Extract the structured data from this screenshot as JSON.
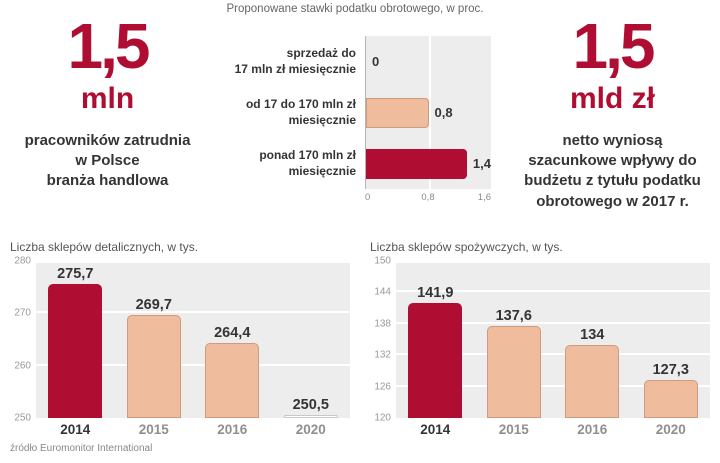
{
  "palette": {
    "crimson": "#b00d33",
    "salmon": "#efbc9e",
    "salmon_border": "#d09a7e",
    "white_bar": "#ffffff",
    "white_bar_border": "#c8c8c8",
    "plot_bg": "#ededed",
    "dark_text": "#343434"
  },
  "stats": {
    "left": {
      "value": "1,5",
      "unit": "mln",
      "desc": "pracowników zatrudnia\nw Polsce\nbranża handlowa"
    },
    "right": {
      "value": "1,5",
      "unit": "mld zł",
      "desc": "netto wyniosą\nszacunkowe wpływy do\nbudżetu z tytułu podatku\nobrotowego w 2017 r."
    }
  },
  "source": "źródło Euromonitor International",
  "chart_data": [
    {
      "type": "bar",
      "orientation": "horizontal",
      "title": "Proponowane stawki podatku obrotowego, w proc.",
      "categories": [
        "sprzedaż do\n17 mln zł miesięcznie",
        "od 17 do 170 mln zł\nmiesięcznie",
        "ponad 170 mln zł\nmiesięcznie"
      ],
      "values": [
        0,
        0.8,
        1.4
      ],
      "value_labels": [
        "0",
        "0,8",
        "1,4"
      ],
      "colors": [
        "none",
        "salmon",
        "crimson"
      ],
      "xlim": [
        0,
        1.6
      ],
      "xticks": [
        0,
        0.8,
        1.6
      ],
      "xtick_labels": [
        "0",
        "0,8",
        "1,6"
      ],
      "grid": true,
      "legend": "none"
    },
    {
      "type": "bar",
      "title": "Liczba sklepów detalicznych, w tys.",
      "categories": [
        "2014",
        "2015",
        "2016",
        "2020"
      ],
      "values": [
        275.7,
        269.7,
        264.4,
        250.5
      ],
      "value_labels": [
        "275,7",
        "269,7",
        "264,4",
        "250,5"
      ],
      "colors": [
        "crimson",
        "salmon",
        "salmon",
        "white"
      ],
      "ylim": [
        250,
        280
      ],
      "yticks": [
        250,
        260,
        270,
        280
      ],
      "ytick_labels": [
        "250",
        "260",
        "270",
        "280"
      ],
      "grid": true,
      "legend": "none"
    },
    {
      "type": "bar",
      "title": "Liczba sklepów spożywczych, w tys.",
      "categories": [
        "2014",
        "2015",
        "2016",
        "2020"
      ],
      "values": [
        141.9,
        137.6,
        134,
        127.3
      ],
      "value_labels": [
        "141,9",
        "137,6",
        "134",
        "127,3"
      ],
      "colors": [
        "crimson",
        "salmon",
        "salmon",
        "salmon"
      ],
      "ylim": [
        120,
        150
      ],
      "yticks": [
        120,
        126,
        132,
        138,
        144,
        150
      ],
      "ytick_labels": [
        "120",
        "126",
        "132",
        "138",
        "144",
        "150"
      ],
      "grid": true,
      "legend": "none"
    }
  ]
}
